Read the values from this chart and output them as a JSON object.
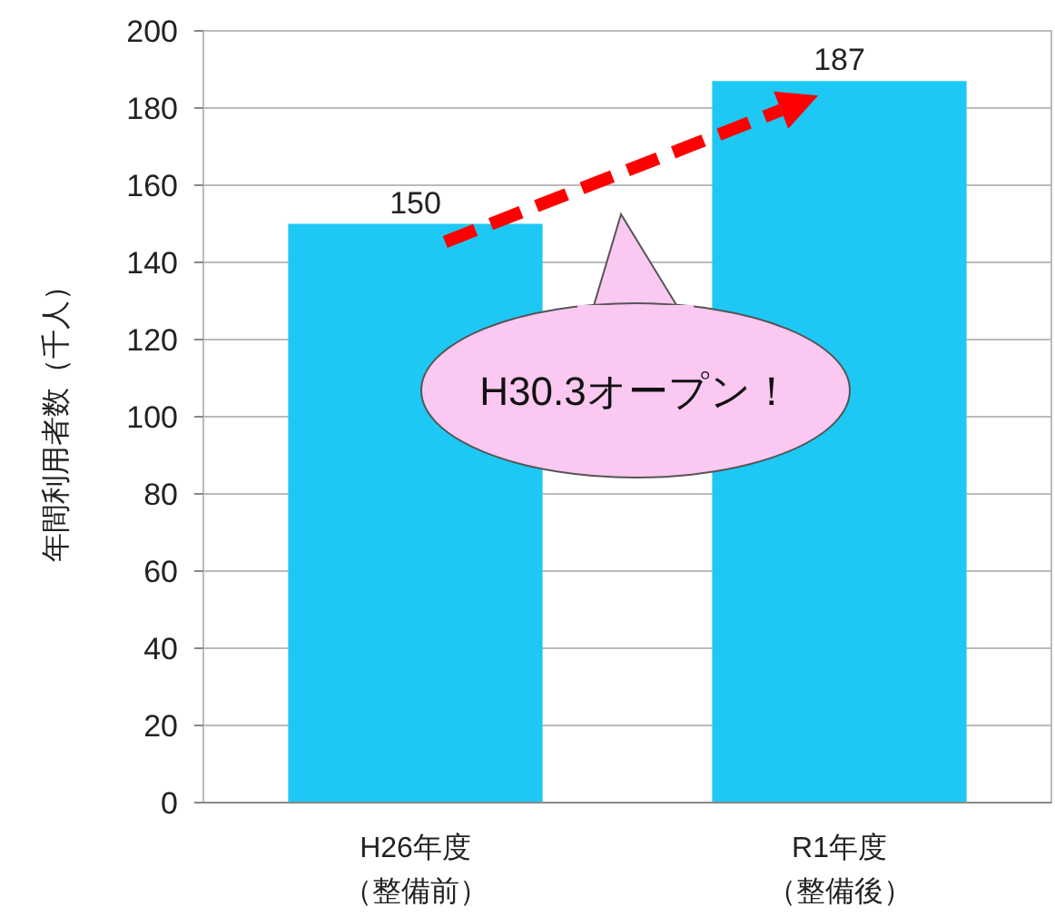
{
  "chart_data": {
    "type": "bar",
    "categories": [
      "H26年度（整備前）",
      "R1年度（整備後）"
    ],
    "values": [
      150,
      187
    ],
    "color": "#1ec8f4",
    "ylabel": "年間利用者数（千人）",
    "ylim": [
      0,
      200
    ],
    "yticks": [
      0,
      20,
      40,
      60,
      80,
      100,
      120,
      140,
      160,
      180,
      200
    ],
    "grid": "y",
    "data_labels": true,
    "annotations": [
      "H30.3オープン！"
    ]
  }
}
